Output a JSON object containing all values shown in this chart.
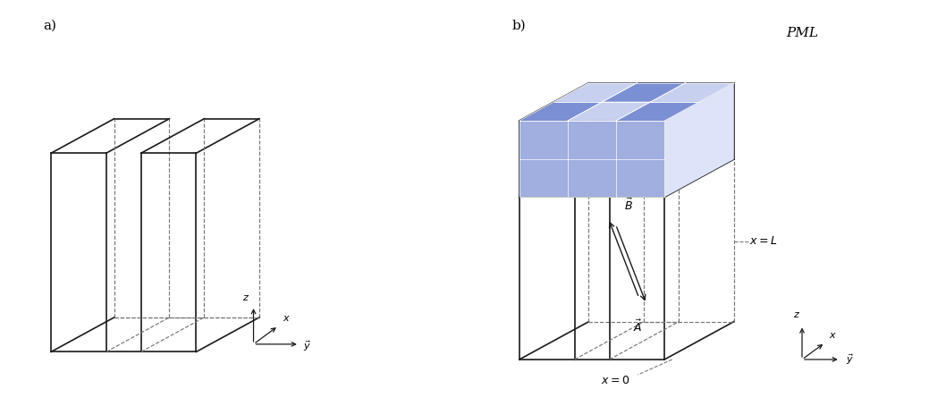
{
  "fig_width": 10.39,
  "fig_height": 4.45,
  "bg_color": "#ffffff",
  "line_color": "#1a1a1a",
  "dashed_color": "#777777",
  "label_a": "a)",
  "label_b": "b)",
  "pml_text": "PML",
  "vec_A": "$\\vec{A}$",
  "vec_B": "$\\vec{B}$",
  "xL_label": "$x = L$",
  "x0_label": "$x = 0$",
  "axis_z": "$z$",
  "axis_x": "$x$",
  "axis_y": "$\\vec{y}$",
  "pml_dark": "#7b8fd4",
  "pml_mid": "#a0aee0",
  "pml_light": "#c8d0f0",
  "pml_vlight": "#dde3f8"
}
